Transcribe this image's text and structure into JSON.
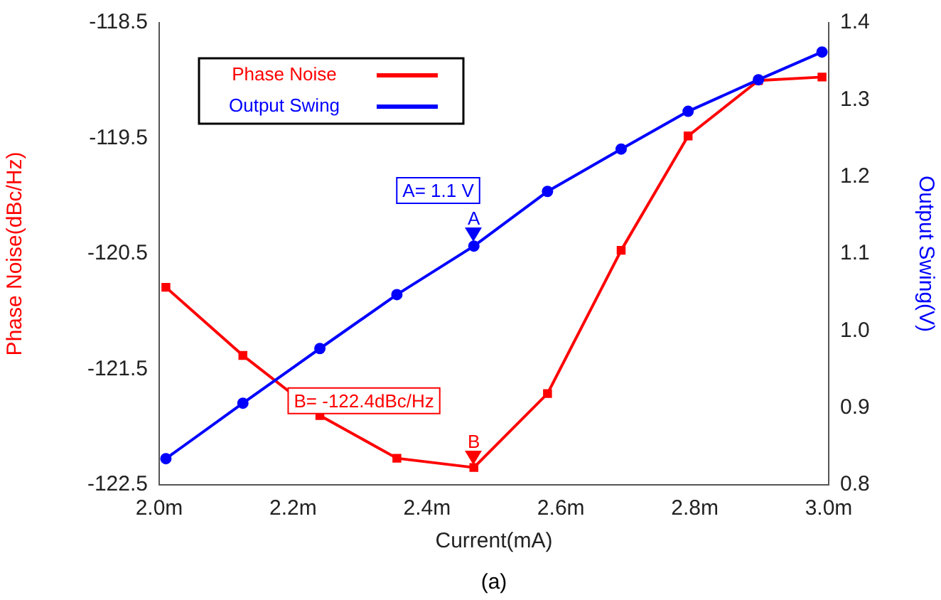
{
  "chart_data": {
    "type": "line",
    "xlabel": "Current(mA)",
    "ylabel": "Phase Noise(dBc/Hz)",
    "y2label": "Output Swing(V)",
    "x": [
      2.01,
      2.125,
      2.24,
      2.355,
      2.47,
      2.58,
      2.69,
      2.79,
      2.895,
      2.99
    ],
    "series": [
      {
        "name": "Phase Noise",
        "color": "#ff0000",
        "marker": "square",
        "values": [
          -120.79,
          -121.38,
          -121.9,
          -122.27,
          -122.35,
          -121.71,
          -120.47,
          -119.48,
          -119.0,
          -118.97
        ]
      },
      {
        "name": "Output Swing",
        "color": "#0000ff",
        "marker": "circle",
        "axis": "y2",
        "values": [
          0.834,
          0.906,
          0.977,
          1.047,
          1.11,
          1.181,
          1.236,
          1.285,
          1.326,
          1.362
        ]
      }
    ],
    "xlim": [
      2.0,
      3.0
    ],
    "xticks": [
      {
        "value": 2.0,
        "label": "2.0m"
      },
      {
        "value": 2.2,
        "label": "2.2m"
      },
      {
        "value": 2.4,
        "label": "2.4m"
      },
      {
        "value": 2.6,
        "label": "2.6m"
      },
      {
        "value": 2.8,
        "label": "2.8m"
      },
      {
        "value": 3.0,
        "label": "3.0m"
      }
    ],
    "ylim": [
      -122.5,
      -118.5
    ],
    "yticks": [
      -122.5,
      -121.5,
      -120.5,
      -119.5,
      -118.5
    ],
    "y2lim": [
      0.8,
      1.4
    ],
    "y2ticks": [
      {
        "value": 0.8,
        "label": "0.8"
      },
      {
        "value": 0.9,
        "label": "0.9"
      },
      {
        "value": 1.0,
        "label": "1.0"
      },
      {
        "value": 1.1,
        "label": "1.1"
      },
      {
        "value": 1.2,
        "label": "1.2"
      },
      {
        "value": 1.3,
        "label": "1.3"
      },
      {
        "value": 1.4,
        "label": "1.4"
      }
    ],
    "grid": false,
    "legend": "top left",
    "line_style": "solid",
    "annotations": [
      "A= 1.1 V",
      "B= -122.4dBc/Hz",
      {
        "text": "A",
        "x": 2.47,
        "y": -120.42
      },
      {
        "text": "B",
        "x": 2.47,
        "y": -122.35
      },
      "(a)"
    ]
  }
}
